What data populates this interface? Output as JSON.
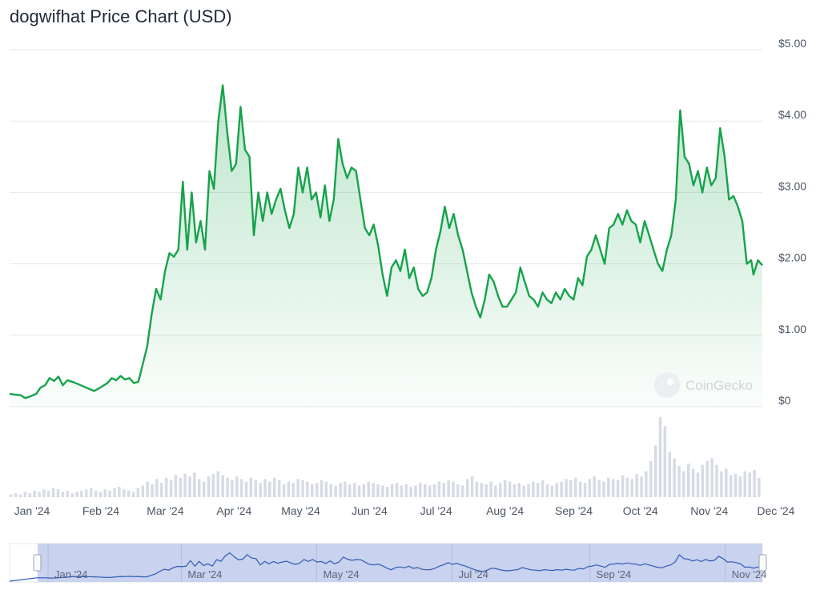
{
  "chart_data": {
    "type": "area",
    "title": "dogwifhat Price Chart (USD)",
    "watermark": "CoinGecko",
    "y_ticks": [
      "$5.00",
      "$4.00",
      "$3.00",
      "$2.00",
      "$1.00",
      "$0"
    ],
    "ylim": [
      0,
      5
    ],
    "x_tick_labels": [
      "Jan '24",
      "Feb '24",
      "Mar '24",
      "Apr '24",
      "May '24",
      "Jun '24",
      "Jul '24",
      "Aug '24",
      "Sep '24",
      "Oct '24",
      "Nov '24",
      "Dec '24"
    ],
    "navigator_labels": [
      "Jan '24",
      "Mar '24",
      "May '24",
      "Jul '24",
      "Sep '24",
      "Nov '24"
    ],
    "colors": {
      "line": "#16a34a",
      "fill": "#16a34a",
      "volume": "#d7dbe3",
      "navigator": "#c9d2ee",
      "navigator_line": "#2f5bb5",
      "grid": "#e5e7eb"
    },
    "series": [
      {
        "values": [
          [
            "2024-01-01",
            0.18
          ],
          [
            "2024-01-03",
            0.17
          ],
          [
            "2024-01-06",
            0.16
          ],
          [
            "2024-01-08",
            0.12
          ],
          [
            "2024-01-10",
            0.14
          ],
          [
            "2024-01-13",
            0.18
          ],
          [
            "2024-01-15",
            0.27
          ],
          [
            "2024-01-17",
            0.3
          ],
          [
            "2024-01-19",
            0.4
          ],
          [
            "2024-01-21",
            0.36
          ],
          [
            "2024-01-23",
            0.42
          ],
          [
            "2024-01-25",
            0.3
          ],
          [
            "2024-01-27",
            0.37
          ],
          [
            "2024-01-30",
            0.34
          ],
          [
            "2024-02-02",
            0.3
          ],
          [
            "2024-02-05",
            0.26
          ],
          [
            "2024-02-08",
            0.22
          ],
          [
            "2024-02-11",
            0.27
          ],
          [
            "2024-02-14",
            0.33
          ],
          [
            "2024-02-16",
            0.4
          ],
          [
            "2024-02-18",
            0.37
          ],
          [
            "2024-02-20",
            0.43
          ],
          [
            "2024-02-22",
            0.38
          ],
          [
            "2024-02-24",
            0.4
          ],
          [
            "2024-02-26",
            0.33
          ],
          [
            "2024-02-28",
            0.35
          ],
          [
            "2024-03-01",
            0.6
          ],
          [
            "2024-03-03",
            0.85
          ],
          [
            "2024-03-05",
            1.3
          ],
          [
            "2024-03-07",
            1.65
          ],
          [
            "2024-03-09",
            1.5
          ],
          [
            "2024-03-11",
            1.9
          ],
          [
            "2024-03-13",
            2.15
          ],
          [
            "2024-03-15",
            2.1
          ],
          [
            "2024-03-17",
            2.2
          ],
          [
            "2024-03-19",
            3.15
          ],
          [
            "2024-03-21",
            2.2
          ],
          [
            "2024-03-23",
            3.0
          ],
          [
            "2024-03-25",
            2.3
          ],
          [
            "2024-03-27",
            2.6
          ],
          [
            "2024-03-29",
            2.2
          ],
          [
            "2024-03-31",
            3.3
          ],
          [
            "2024-04-02",
            3.05
          ],
          [
            "2024-04-04",
            4.0
          ],
          [
            "2024-04-06",
            4.5
          ],
          [
            "2024-04-08",
            3.85
          ],
          [
            "2024-04-10",
            3.3
          ],
          [
            "2024-04-12",
            3.4
          ],
          [
            "2024-04-14",
            4.2
          ],
          [
            "2024-04-16",
            3.6
          ],
          [
            "2024-04-18",
            3.5
          ],
          [
            "2024-04-20",
            2.4
          ],
          [
            "2024-04-22",
            3.0
          ],
          [
            "2024-04-24",
            2.6
          ],
          [
            "2024-04-26",
            3.0
          ],
          [
            "2024-04-28",
            2.7
          ],
          [
            "2024-04-30",
            2.9
          ],
          [
            "2024-05-02",
            3.05
          ],
          [
            "2024-05-04",
            2.75
          ],
          [
            "2024-05-06",
            2.5
          ],
          [
            "2024-05-08",
            2.7
          ],
          [
            "2024-05-10",
            3.35
          ],
          [
            "2024-05-12",
            3.0
          ],
          [
            "2024-05-14",
            3.35
          ],
          [
            "2024-05-16",
            2.9
          ],
          [
            "2024-05-18",
            3.0
          ],
          [
            "2024-05-20",
            2.65
          ],
          [
            "2024-05-22",
            3.1
          ],
          [
            "2024-05-24",
            2.6
          ],
          [
            "2024-05-26",
            2.9
          ],
          [
            "2024-05-28",
            3.75
          ],
          [
            "2024-05-30",
            3.4
          ],
          [
            "2024-06-01",
            3.2
          ],
          [
            "2024-06-03",
            3.35
          ],
          [
            "2024-06-05",
            3.3
          ],
          [
            "2024-06-07",
            2.9
          ],
          [
            "2024-06-09",
            2.5
          ],
          [
            "2024-06-11",
            2.4
          ],
          [
            "2024-06-13",
            2.55
          ],
          [
            "2024-06-15",
            2.25
          ],
          [
            "2024-06-17",
            1.85
          ],
          [
            "2024-06-19",
            1.55
          ],
          [
            "2024-06-21",
            1.95
          ],
          [
            "2024-06-23",
            2.05
          ],
          [
            "2024-06-25",
            1.9
          ],
          [
            "2024-06-27",
            2.2
          ],
          [
            "2024-06-29",
            1.8
          ],
          [
            "2024-07-01",
            1.95
          ],
          [
            "2024-07-03",
            1.65
          ],
          [
            "2024-07-05",
            1.55
          ],
          [
            "2024-07-07",
            1.6
          ],
          [
            "2024-07-09",
            1.8
          ],
          [
            "2024-07-11",
            2.2
          ],
          [
            "2024-07-13",
            2.45
          ],
          [
            "2024-07-15",
            2.8
          ],
          [
            "2024-07-17",
            2.5
          ],
          [
            "2024-07-19",
            2.7
          ],
          [
            "2024-07-21",
            2.4
          ],
          [
            "2024-07-23",
            2.2
          ],
          [
            "2024-07-25",
            1.9
          ],
          [
            "2024-07-27",
            1.6
          ],
          [
            "2024-07-29",
            1.4
          ],
          [
            "2024-07-31",
            1.25
          ],
          [
            "2024-08-02",
            1.5
          ],
          [
            "2024-08-04",
            1.85
          ],
          [
            "2024-08-06",
            1.75
          ],
          [
            "2024-08-08",
            1.55
          ],
          [
            "2024-08-10",
            1.4
          ],
          [
            "2024-08-12",
            1.4
          ],
          [
            "2024-08-14",
            1.5
          ],
          [
            "2024-08-16",
            1.6
          ],
          [
            "2024-08-18",
            1.95
          ],
          [
            "2024-08-20",
            1.75
          ],
          [
            "2024-08-22",
            1.55
          ],
          [
            "2024-08-24",
            1.5
          ],
          [
            "2024-08-26",
            1.4
          ],
          [
            "2024-08-28",
            1.6
          ],
          [
            "2024-08-30",
            1.5
          ],
          [
            "2024-09-01",
            1.45
          ],
          [
            "2024-09-03",
            1.6
          ],
          [
            "2024-09-05",
            1.5
          ],
          [
            "2024-09-07",
            1.65
          ],
          [
            "2024-09-09",
            1.55
          ],
          [
            "2024-09-11",
            1.5
          ],
          [
            "2024-09-13",
            1.8
          ],
          [
            "2024-09-15",
            1.7
          ],
          [
            "2024-09-17",
            2.1
          ],
          [
            "2024-09-19",
            2.2
          ],
          [
            "2024-09-21",
            2.4
          ],
          [
            "2024-09-23",
            2.2
          ],
          [
            "2024-09-25",
            2.0
          ],
          [
            "2024-09-27",
            2.5
          ],
          [
            "2024-09-29",
            2.55
          ],
          [
            "2024-10-01",
            2.7
          ],
          [
            "2024-10-03",
            2.55
          ],
          [
            "2024-10-05",
            2.75
          ],
          [
            "2024-10-07",
            2.6
          ],
          [
            "2024-10-09",
            2.55
          ],
          [
            "2024-10-11",
            2.3
          ],
          [
            "2024-10-13",
            2.6
          ],
          [
            "2024-10-15",
            2.4
          ],
          [
            "2024-10-17",
            2.2
          ],
          [
            "2024-10-19",
            2.0
          ],
          [
            "2024-10-21",
            1.9
          ],
          [
            "2024-10-23",
            2.2
          ],
          [
            "2024-10-25",
            2.4
          ],
          [
            "2024-10-27",
            2.9
          ],
          [
            "2024-10-29",
            4.15
          ],
          [
            "2024-10-31",
            3.5
          ],
          [
            "2024-11-02",
            3.4
          ],
          [
            "2024-11-04",
            3.1
          ],
          [
            "2024-11-06",
            3.3
          ],
          [
            "2024-11-08",
            3.0
          ],
          [
            "2024-11-10",
            3.35
          ],
          [
            "2024-11-12",
            3.1
          ],
          [
            "2024-11-14",
            3.2
          ],
          [
            "2024-11-16",
            3.9
          ],
          [
            "2024-11-18",
            3.5
          ],
          [
            "2024-11-20",
            2.9
          ],
          [
            "2024-11-22",
            2.95
          ],
          [
            "2024-11-24",
            2.8
          ],
          [
            "2024-11-26",
            2.6
          ],
          [
            "2024-11-28",
            2.0
          ],
          [
            "2024-11-30",
            2.05
          ],
          [
            "2024-12-01",
            1.85
          ],
          [
            "2024-12-03",
            2.05
          ],
          [
            "2024-12-05",
            1.98
          ]
        ]
      }
    ],
    "volume": [
      2,
      3,
      2,
      4,
      3,
      5,
      4,
      6,
      5,
      7,
      6,
      4,
      5,
      3,
      4,
      5,
      6,
      7,
      5,
      4,
      6,
      5,
      7,
      8,
      6,
      5,
      4,
      7,
      9,
      12,
      10,
      14,
      11,
      15,
      13,
      17,
      15,
      18,
      16,
      19,
      14,
      12,
      16,
      18,
      20,
      17,
      15,
      13,
      16,
      14,
      12,
      15,
      13,
      11,
      14,
      12,
      15,
      13,
      10,
      12,
      11,
      14,
      13,
      12,
      10,
      11,
      13,
      12,
      10,
      9,
      11,
      12,
      10,
      11,
      9,
      10,
      12,
      11,
      10,
      9,
      8,
      10,
      11,
      9,
      10,
      8,
      9,
      11,
      10,
      9,
      10,
      12,
      11,
      13,
      12,
      10,
      9,
      14,
      16,
      12,
      11,
      10,
      12,
      9,
      11,
      13,
      12,
      10,
      11,
      9,
      10,
      12,
      11,
      13,
      10,
      9,
      11,
      12,
      14,
      13,
      15,
      12,
      11,
      14,
      16,
      13,
      12,
      15,
      14,
      13,
      17,
      15,
      14,
      18,
      16,
      20,
      28,
      40,
      62,
      55,
      35,
      30,
      24,
      20,
      26,
      22,
      19,
      25,
      28,
      30,
      25,
      20,
      22,
      17,
      18,
      16,
      20,
      19,
      21,
      15
    ]
  }
}
